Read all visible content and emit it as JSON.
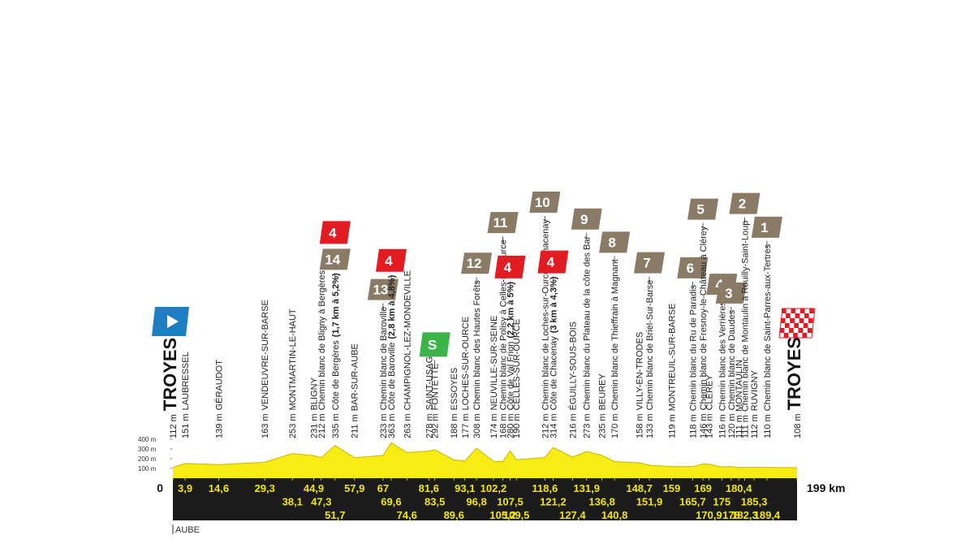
{
  "chart_data": {
    "type": "profile",
    "xlim": [
      0,
      199
    ],
    "ylim": [
      0,
      400
    ],
    "yticks": [
      {
        "value": 100,
        "label": "100 m"
      },
      {
        "value": 200,
        "label": "200 m"
      },
      {
        "value": 300,
        "label": "300 m"
      },
      {
        "value": 400,
        "label": "400 m"
      }
    ],
    "region": "AUBE",
    "waypoints": [
      {
        "km": {
          "value": 0,
          "label": "0"
        },
        "altitude": {
          "value": 112,
          "label": "112 m"
        },
        "name": "TROYES",
        "marker": "start"
      },
      {
        "km": {
          "value": 3.9,
          "label": "3,9"
        },
        "altitude": {
          "value": 151,
          "label": "151 m"
        },
        "name": "LAUBRESSEL"
      },
      {
        "km": {
          "value": 14.6,
          "label": "14,6"
        },
        "altitude": {
          "value": 139,
          "label": "139 m"
        },
        "name": "GÉRAUDOT"
      },
      {
        "km": {
          "value": 29.3,
          "label": "29,3"
        },
        "altitude": {
          "value": 163,
          "label": "163 m"
        },
        "name": "VENDEUVRE-SUR-BARSE"
      },
      {
        "km": {
          "value": 38.1,
          "label": "38,1"
        },
        "altitude": {
          "value": 253,
          "label": "253 m"
        },
        "name": "MONTMARTIN-LE-HAUT"
      },
      {
        "km": {
          "value": 44.9,
          "label": "44,9"
        },
        "altitude": {
          "value": 231,
          "label": "231 m"
        },
        "name": "BLIGNY"
      },
      {
        "km": {
          "value": 47.3,
          "label": "47,3"
        },
        "altitude": {
          "value": 212,
          "label": "212 m"
        },
        "name": "Chemin blanc de Bligny à Bergères"
      },
      {
        "km": {
          "value": 51.7,
          "label": "51,7"
        },
        "altitude": {
          "value": 335,
          "label": "335 m"
        },
        "name": "Côte de Bergères",
        "detail": "(1,7 km à 5,2%)",
        "sector": 14,
        "category": 4
      },
      {
        "km": {
          "value": 57.9,
          "label": "57,9"
        },
        "altitude": {
          "value": 211,
          "label": "211 m"
        },
        "name": "BAR-SUR-AUBE"
      },
      {
        "km": {
          "value": 67,
          "label": "67"
        },
        "altitude": {
          "value": 233,
          "label": "233 m"
        },
        "name": "Chemin blanc de Baroville",
        "sector": 13
      },
      {
        "km": {
          "value": 69.6,
          "label": "69,6"
        },
        "altitude": {
          "value": 363,
          "label": "363 m"
        },
        "name": "Côte de Baroville",
        "detail": "(2,8 km à 4,8%)",
        "category": 4
      },
      {
        "km": {
          "value": 74.6,
          "label": "74,6"
        },
        "altitude": {
          "value": 263,
          "label": "263 m"
        },
        "name": "CHAMPIGNOL-LEZ-MONDEVILLE"
      },
      {
        "km": {
          "value": 81.6,
          "label": "81,6"
        },
        "altitude": {
          "value": 278,
          "label": "278 m"
        },
        "name": "SAINT-USAGE"
      },
      {
        "km": {
          "value": 83.5,
          "label": "83,5"
        },
        "altitude": {
          "value": 292,
          "label": "292 m"
        },
        "name": "FONTETTE",
        "sprint": "S"
      },
      {
        "km": {
          "value": 89.6,
          "label": "89,6"
        },
        "altitude": {
          "value": 188,
          "label": "188 m"
        },
        "name": "ESSOYES"
      },
      {
        "km": {
          "value": 93.1,
          "label": "93,1"
        },
        "altitude": {
          "value": 177,
          "label": "177 m"
        },
        "name": "LOCHES-SUR-OURCE"
      },
      {
        "km": {
          "value": 96.8,
          "label": "96,8"
        },
        "altitude": {
          "value": 308,
          "label": "308 m"
        },
        "name": "Chemin blanc des Hautes Forêts",
        "sector": 12
      },
      {
        "km": {
          "value": 102.2,
          "label": "102,2"
        },
        "altitude": {
          "value": 174,
          "label": "174 m"
        },
        "name": "NEUVILLE-SUR-SEINE"
      },
      {
        "km": {
          "value": 105.2,
          "label": "105,2"
        },
        "altitude": {
          "value": 168,
          "label": "168 m"
        },
        "name": "Chemin blanc de Polisy à Celles-sur-Ource",
        "sector": 11
      },
      {
        "km": {
          "value": 107.5,
          "label": "107,5"
        },
        "altitude": {
          "value": 280,
          "label": "280 m"
        },
        "name": "Côte de Val Frion",
        "detail": "(2,2 km à 5%)",
        "category": 4
      },
      {
        "km": {
          "value": 109.5,
          "label": "109,5"
        },
        "altitude": {
          "value": 190,
          "label": "190 m"
        },
        "name": "CELLES-SUR-OURCE"
      },
      {
        "km": {
          "value": 118.6,
          "label": "118,6"
        },
        "altitude": {
          "value": 212,
          "label": "212 m"
        },
        "name": "Chemin blanc de Loches-sur-Ource à Chacenay",
        "sector": 10
      },
      {
        "km": {
          "value": 121.2,
          "label": "121,2"
        },
        "altitude": {
          "value": 314,
          "label": "314 m"
        },
        "name": "Côte de Chacenay",
        "detail": "(3 km à 4,3%)",
        "category": 4
      },
      {
        "km": {
          "value": 127.4,
          "label": "127,4"
        },
        "altitude": {
          "value": 216,
          "label": "216 m"
        },
        "name": "ÉGUILLY-SOUS-BOIS"
      },
      {
        "km": {
          "value": 131.9,
          "label": "131,9"
        },
        "altitude": {
          "value": 273,
          "label": "273 m"
        },
        "name": "Chemin blanc du Plateau de la côte des Bar",
        "sector": 9
      },
      {
        "km": {
          "value": 136.8,
          "label": "136,8"
        },
        "altitude": {
          "value": 235,
          "label": "235 m"
        },
        "name": "BEUREY"
      },
      {
        "km": {
          "value": 140.8,
          "label": "140,8"
        },
        "altitude": {
          "value": 170,
          "label": "170 m"
        },
        "name": "Chemin blanc de Thieffrain à Magnant",
        "sector": 8
      },
      {
        "km": {
          "value": 148.7,
          "label": "148,7"
        },
        "altitude": {
          "value": 158,
          "label": "158 m"
        },
        "name": "VILLY-EN-TRODES"
      },
      {
        "km": {
          "value": 151.9,
          "label": "151,9"
        },
        "altitude": {
          "value": 133,
          "label": "133 m"
        },
        "name": "Chemin blanc de Briel-Sur-Barse",
        "sector": 7
      },
      {
        "km": {
          "value": 159,
          "label": "159"
        },
        "altitude": {
          "value": 119,
          "label": "119 m"
        },
        "name": "MONTREUIL-SUR-BARSE"
      },
      {
        "km": {
          "value": 165.7,
          "label": "165,7"
        },
        "altitude": {
          "value": 118,
          "label": "118 m"
        },
        "name": "Chemin blanc du Ru de Paradis",
        "sector": 6
      },
      {
        "km": {
          "value": 169,
          "label": "169"
        },
        "altitude": {
          "value": 146,
          "label": "146 m"
        },
        "name": "Chemin blanc de Fresnoy-le-Château à Clérey",
        "sector": 5
      },
      {
        "km": {
          "value": 170.9,
          "label": "170,9"
        },
        "altitude": {
          "value": 143,
          "label": "143 m"
        },
        "name": "CLÉREY"
      },
      {
        "km": {
          "value": 175,
          "label": "175"
        },
        "altitude": {
          "value": 116,
          "label": "116 m"
        },
        "name": "Chemin blanc des Verrières",
        "sector": 4
      },
      {
        "km": {
          "value": 178,
          "label": "178"
        },
        "altitude": {
          "value": 120,
          "label": "120 m"
        },
        "name": "Chemin blanc de Daudes",
        "sector": 3
      },
      {
        "km": {
          "value": 180.4,
          "label": "180,4"
        },
        "altitude": {
          "value": 111,
          "label": "111 m"
        },
        "name": "MONTAULIN"
      },
      {
        "km": {
          "value": 182.3,
          "label": "182,3"
        },
        "altitude": {
          "value": 111,
          "label": "111 m"
        },
        "name": "Chemin blanc de Montaulin à Rouilly-Saint-Loup",
        "sector": 2
      },
      {
        "km": {
          "value": 185.3,
          "label": "185,3"
        },
        "altitude": {
          "value": 112,
          "label": "112 m"
        },
        "name": "RUVIGNY"
      },
      {
        "km": {
          "value": 189.4,
          "label": "189,4"
        },
        "altitude": {
          "value": 110,
          "label": "110 m"
        },
        "name": "Chemin blanc de Saint-Parres-aux-Tertres",
        "sector": 1
      },
      {
        "km": {
          "value": 199,
          "label": "199 km"
        },
        "altitude": {
          "value": 108,
          "label": "108 m"
        },
        "name": "TROYES",
        "marker": "finish"
      }
    ]
  }
}
